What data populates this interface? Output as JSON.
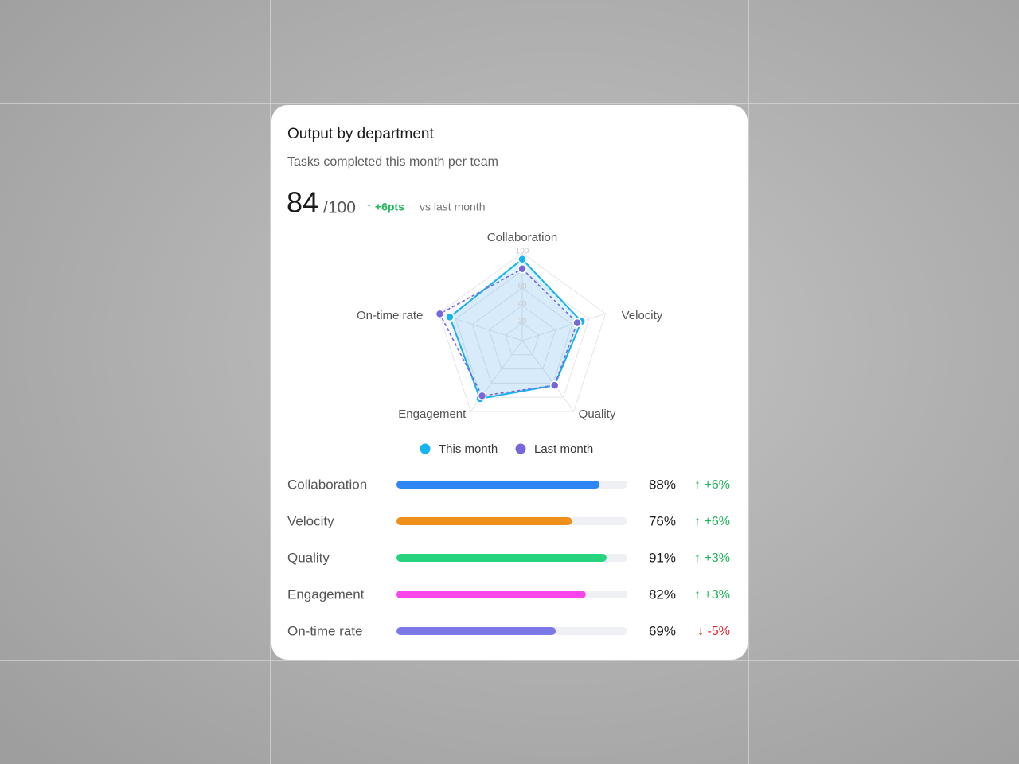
{
  "card": {
    "title": "Output by department",
    "subtitle": "Tasks completed this month per team",
    "score": 84,
    "score_max": "/100",
    "change": "↑ +6pts",
    "change_note": "vs last month"
  },
  "chart_data": [
    {
      "type": "radar",
      "categories": [
        "Collaboration",
        "Velocity",
        "Quality",
        "Engagement",
        "On-time rate"
      ],
      "rlim": [
        0,
        100
      ],
      "rticks": [
        20,
        40,
        60,
        80,
        100
      ],
      "series": [
        {
          "name": "This month",
          "color": "#13b4ef",
          "values": [
            93,
            71,
            63,
            82,
            87
          ],
          "dashed": false
        },
        {
          "name": "Last month",
          "color": "#7668dc",
          "values": [
            82,
            66,
            63,
            78,
            99
          ],
          "dashed": true
        }
      ]
    },
    {
      "type": "bar",
      "orientation": "horizontal",
      "categories": [
        "Collaboration",
        "Velocity",
        "Quality",
        "Engagement",
        "On-time rate"
      ],
      "values": [
        88,
        76,
        91,
        82,
        69
      ],
      "value_labels": [
        "88%",
        "76%",
        "91%",
        "82%",
        "69%"
      ],
      "colors": [
        "#2f86f6",
        "#f0901c",
        "#27d47e",
        "#fb45ec",
        "#7b78e8"
      ],
      "xlim": [
        0,
        100
      ],
      "changes": [
        "↑ +6%",
        "↑ +6%",
        "↑ +3%",
        "↑ +3%",
        "↓ -5%"
      ],
      "change_colors": [
        "#1fb45a",
        "#1fb45a",
        "#1fb45a",
        "#1fb45a",
        "#e2242e"
      ]
    }
  ]
}
